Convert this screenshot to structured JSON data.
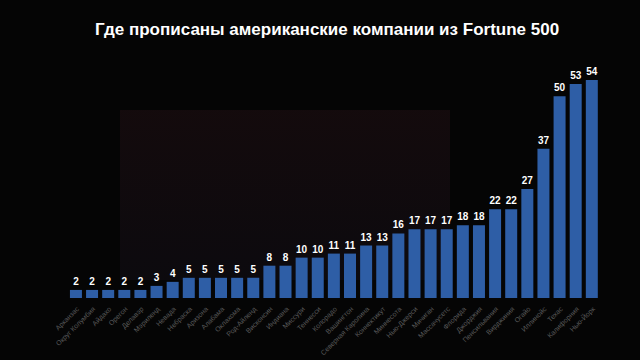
{
  "chart_data": {
    "type": "bar",
    "title": "Где прописаны американские компании из Fortune 500",
    "categories": [
      "Арканзас",
      "Округ Колумбия",
      "Айдахо",
      "Орегон",
      "Делавэр",
      "Мэриленд",
      "Невада",
      "Небраска",
      "Аризона",
      "Алабама",
      "Оклахома",
      "Род-Айленд",
      "Висконсин",
      "Индиана",
      "Миссури",
      "Теннесси",
      "Колорадо",
      "Вашингтон",
      "Северная Каролина",
      "Коннектикут",
      "Миннесота",
      "Нью-Джерси",
      "Мичиган",
      "Массачусетс",
      "Флорида",
      "Джорджия",
      "Пенсильвания",
      "Вирджиния",
      "Огайо",
      "Иллинойс",
      "Техас",
      "Калифорния",
      "Нью-Йорк"
    ],
    "values": [
      2,
      2,
      2,
      2,
      2,
      3,
      4,
      5,
      5,
      5,
      5,
      5,
      8,
      8,
      10,
      10,
      11,
      11,
      13,
      13,
      16,
      17,
      17,
      17,
      18,
      18,
      22,
      22,
      27,
      37,
      50,
      53,
      54
    ],
    "color": "#2e5ea6",
    "ylim": [
      0,
      54
    ],
    "grid": false,
    "data_labels": true,
    "tick_labels": "x"
  }
}
